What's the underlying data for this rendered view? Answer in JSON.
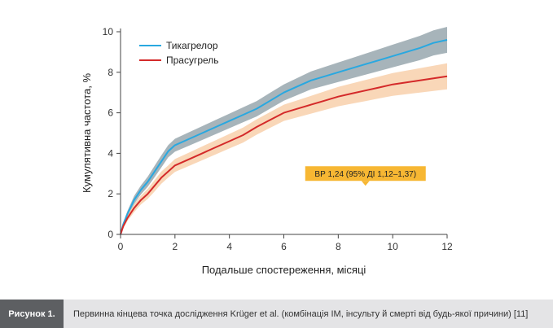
{
  "chart_data": {
    "type": "line",
    "title": "",
    "xlabel": "Подальше спостереження, місяці",
    "ylabel": "Кумулятивна частота, %",
    "xlim": [
      0,
      12
    ],
    "ylim": [
      0,
      10
    ],
    "x_ticks": [
      "0",
      "2",
      "4",
      "6",
      "8",
      "10",
      "12"
    ],
    "y_ticks": [
      "0",
      "2",
      "4",
      "6",
      "8",
      "10"
    ],
    "grid": false,
    "legend_position": "top-left",
    "annotation": "ВР 1,24 (95% ДІ 1,12–1,37)",
    "annotation_anchor": [
      9.0,
      2.4
    ],
    "series": [
      {
        "name": "Тикагрелор",
        "color": "#29a8e0",
        "band_color": "#98a7ae",
        "x": [
          0,
          0.1,
          0.25,
          0.5,
          0.75,
          1.0,
          1.25,
          1.5,
          1.75,
          2.0,
          2.5,
          3.0,
          3.5,
          4.0,
          4.5,
          5.0,
          5.5,
          6.0,
          6.5,
          7.0,
          7.5,
          8.0,
          8.5,
          9.0,
          9.5,
          10.0,
          10.5,
          11.0,
          11.5,
          12.0
        ],
        "y": [
          0,
          0.5,
          1.0,
          1.7,
          2.2,
          2.6,
          3.1,
          3.6,
          4.1,
          4.4,
          4.7,
          5.0,
          5.3,
          5.6,
          5.9,
          6.2,
          6.6,
          7.0,
          7.3,
          7.6,
          7.8,
          8.0,
          8.2,
          8.4,
          8.6,
          8.8,
          9.0,
          9.2,
          9.45,
          9.6
        ],
        "ci_width": [
          0,
          0.1,
          0.15,
          0.2,
          0.22,
          0.25,
          0.28,
          0.3,
          0.3,
          0.32,
          0.33,
          0.34,
          0.35,
          0.36,
          0.37,
          0.38,
          0.39,
          0.4,
          0.42,
          0.44,
          0.46,
          0.48,
          0.5,
          0.52,
          0.54,
          0.56,
          0.58,
          0.6,
          0.62,
          0.64
        ]
      },
      {
        "name": "Прасугрель",
        "color": "#d42a2a",
        "band_color": "#f7c9a0",
        "x": [
          0,
          0.1,
          0.25,
          0.5,
          0.75,
          1.0,
          1.25,
          1.5,
          1.75,
          2.0,
          2.5,
          3.0,
          3.5,
          4.0,
          4.5,
          5.0,
          5.5,
          6.0,
          6.5,
          7.0,
          7.5,
          8.0,
          8.5,
          9.0,
          9.5,
          10.0,
          10.5,
          11.0,
          11.5,
          12.0
        ],
        "y": [
          0,
          0.4,
          0.8,
          1.3,
          1.7,
          2.0,
          2.4,
          2.8,
          3.1,
          3.4,
          3.7,
          4.0,
          4.3,
          4.6,
          4.9,
          5.3,
          5.65,
          6.0,
          6.2,
          6.4,
          6.6,
          6.8,
          6.95,
          7.1,
          7.25,
          7.4,
          7.5,
          7.6,
          7.7,
          7.8
        ],
        "ci_width": [
          0,
          0.1,
          0.15,
          0.2,
          0.22,
          0.25,
          0.28,
          0.3,
          0.3,
          0.32,
          0.33,
          0.34,
          0.35,
          0.36,
          0.37,
          0.38,
          0.39,
          0.4,
          0.42,
          0.44,
          0.46,
          0.48,
          0.5,
          0.52,
          0.54,
          0.56,
          0.58,
          0.6,
          0.62,
          0.64
        ]
      }
    ]
  },
  "caption": {
    "label": "Рисунок 1.",
    "text": "Первинна кінцева точка дослідження Krüger et al. (комбінація ІМ, інсульту й смерті від будь-якої причини) [11]"
  }
}
